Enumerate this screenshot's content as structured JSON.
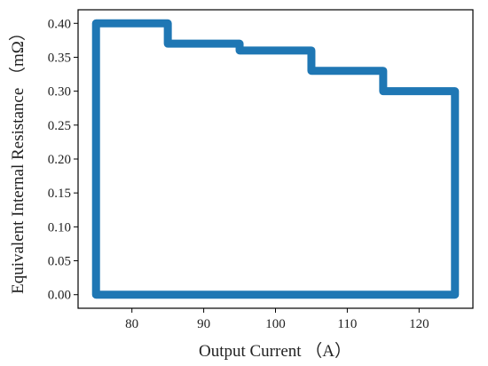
{
  "chart_data": {
    "type": "line",
    "title": "",
    "xlabel": "Output Current （A）",
    "ylabel": "Equivalent Internal Resistance （mΩ）",
    "xlim": [
      72.5,
      127.5
    ],
    "ylim": [
      -0.02,
      0.42
    ],
    "x_ticks": [
      80,
      90,
      100,
      110,
      120
    ],
    "y_ticks": [
      0.0,
      0.05,
      0.1,
      0.15,
      0.2,
      0.25,
      0.3,
      0.35,
      0.4
    ],
    "x_tick_labels": [
      "80",
      "90",
      "100",
      "110",
      "120"
    ],
    "y_tick_labels": [
      "0.00",
      "0.05",
      "0.10",
      "0.15",
      "0.20",
      "0.25",
      "0.30",
      "0.35",
      "0.40"
    ],
    "grid": false,
    "legend": "none",
    "series": [
      {
        "color": "#1f77b4",
        "x": [
          75,
          75,
          85,
          85,
          95,
          95,
          105,
          105,
          115,
          115,
          125,
          125,
          75
        ],
        "y": [
          0.0,
          0.4,
          0.4,
          0.37,
          0.37,
          0.36,
          0.36,
          0.33,
          0.33,
          0.3,
          0.3,
          0.0,
          0.0
        ]
      }
    ]
  }
}
